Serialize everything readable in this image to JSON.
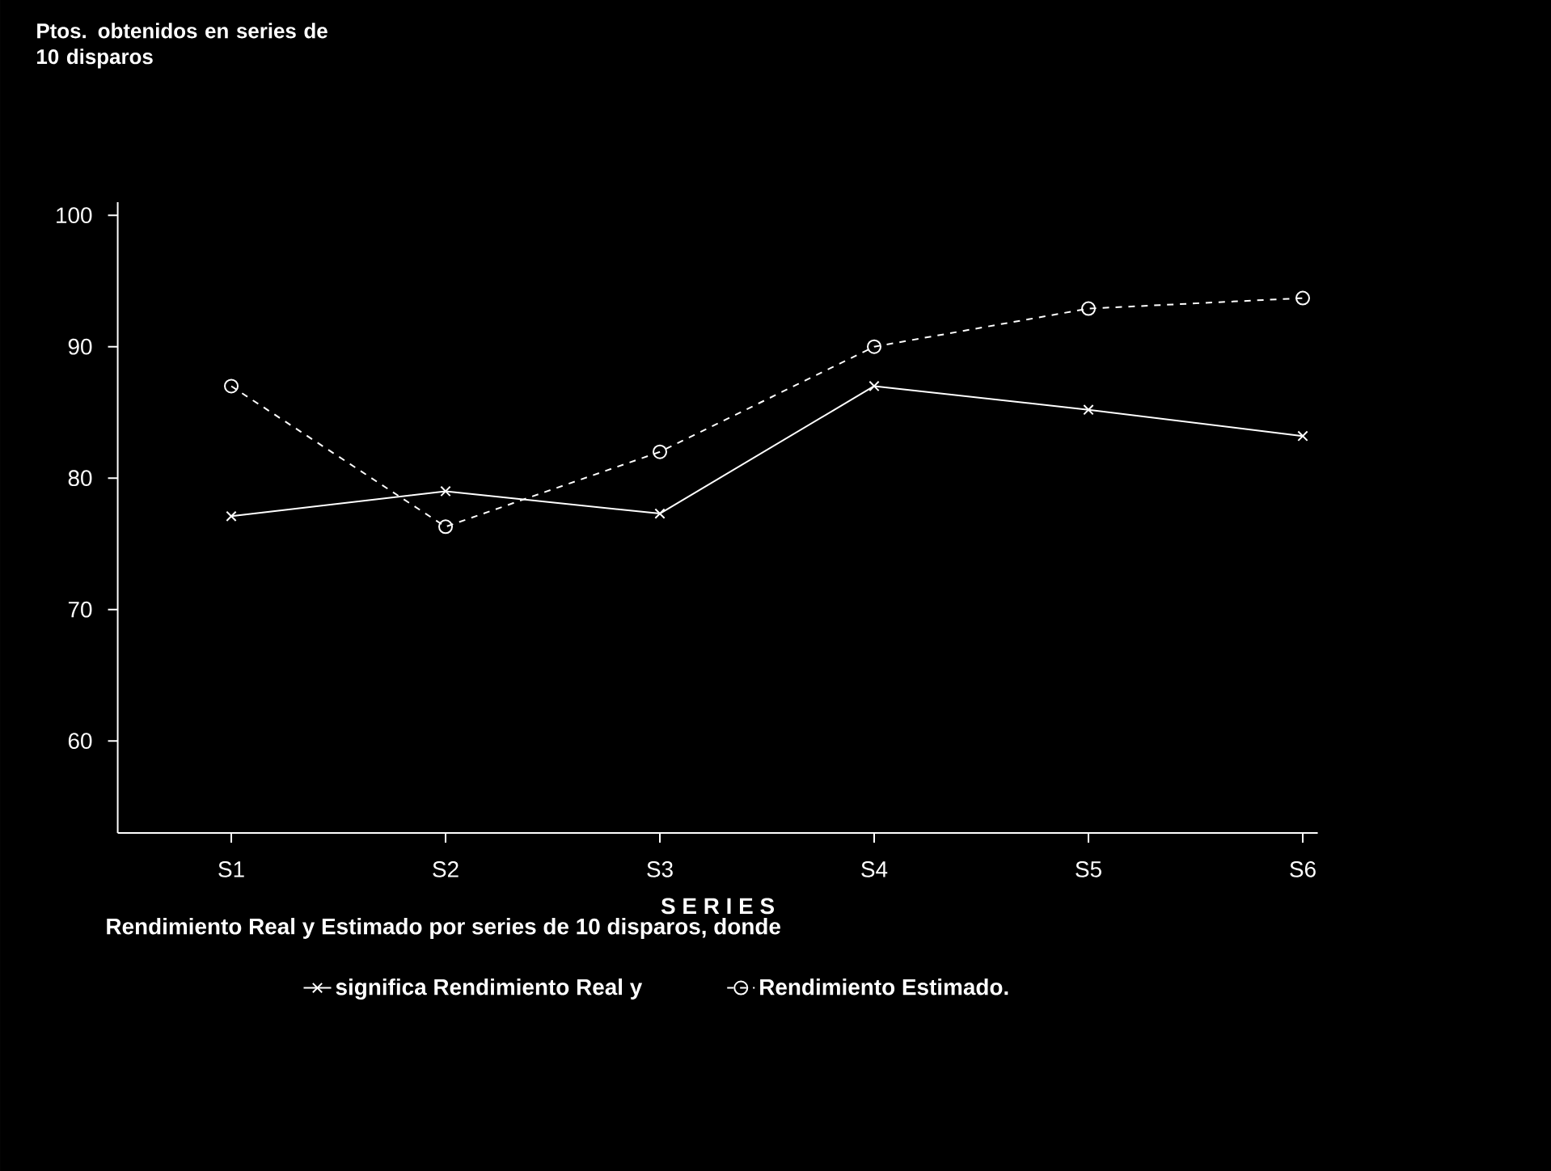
{
  "chart_data": {
    "type": "line",
    "title": "Ptos. obtenidos en series de 10 disparos",
    "xlabel": "S E R I E S",
    "categories": [
      "S1",
      "S2",
      "S3",
      "S4",
      "S5",
      "S6"
    ],
    "series": [
      {
        "name": "significa Rendimiento Real y",
        "color": "#ffffff",
        "values": [
          77.1,
          79,
          77.3,
          87,
          85.2,
          83.2
        ],
        "marker": "cross",
        "line_style": "solid"
      },
      {
        "name": "Rendimiento Estimado.",
        "color": "#ffffff",
        "values": [
          87,
          76.3,
          82,
          90,
          92.9,
          93.7
        ],
        "marker": "circle",
        "line_style": "dashed"
      }
    ],
    "ylim": [
      53,
      101
    ],
    "yticks": [
      60,
      70,
      80,
      90,
      100
    ],
    "grid": false,
    "legend": "bottom",
    "annotations": [
      "Rendimiento Real y Estimado por series de 10 disparos, donde"
    ]
  }
}
